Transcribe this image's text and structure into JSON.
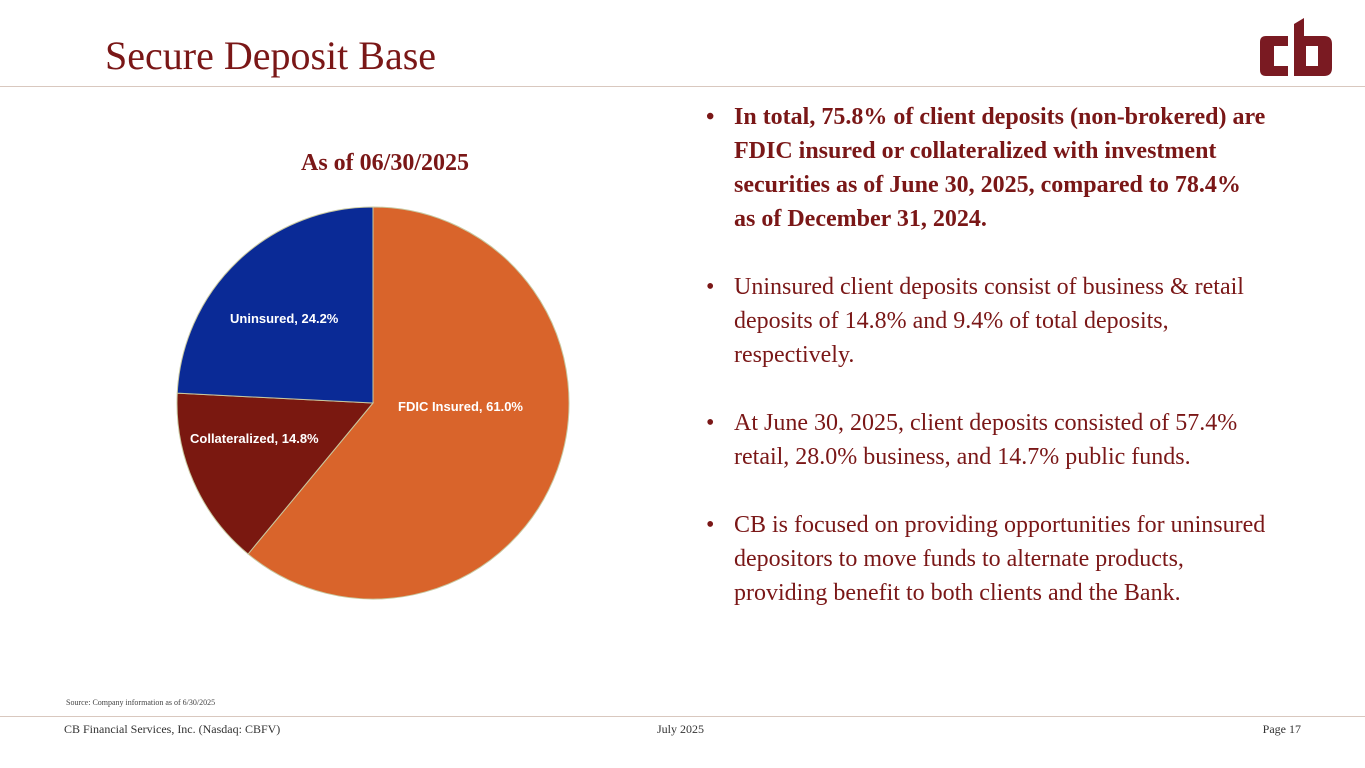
{
  "slide": {
    "title": "Secure Deposit Base"
  },
  "logo": {
    "icon": "cb-logo-icon",
    "color": "#7a1a22"
  },
  "chart_data": {
    "type": "pie",
    "title": "As of 06/30/2025",
    "categories": [
      "FDIC Insured",
      "Collateralized",
      "Uninsured"
    ],
    "values": [
      61.0,
      14.8,
      24.2
    ],
    "labels": [
      "FDIC Insured, 61.0%",
      "Collateralized, 14.8%",
      "Uninsured, 24.2%"
    ],
    "colors": [
      "#d9642b",
      "#7a1810",
      "#0a2a96"
    ]
  },
  "bullets": [
    "In total, 75.8% of client deposits (non-brokered) are FDIC insured or collateralized with investment securities as of June 30, 2025, compared to 78.4% as of December 31, 2024.",
    "Uninsured client deposits consist of business & retail deposits of 14.8% and 9.4% of total deposits, respectively.",
    "At June 30, 2025, client deposits consisted of 57.4% retail, 28.0% business, and 14.7% public funds.",
    "CB is focused on providing opportunities for uninsured depositors to move funds to alternate products, providing benefit to both clients and the Bank."
  ],
  "bullet_glyph": "•",
  "source": "Source: Company information as of 6/30/2025",
  "footer": {
    "company": "CB Financial Services, Inc. (Nasdaq: CBFV)",
    "date": "July 2025",
    "page": "Page 17"
  }
}
